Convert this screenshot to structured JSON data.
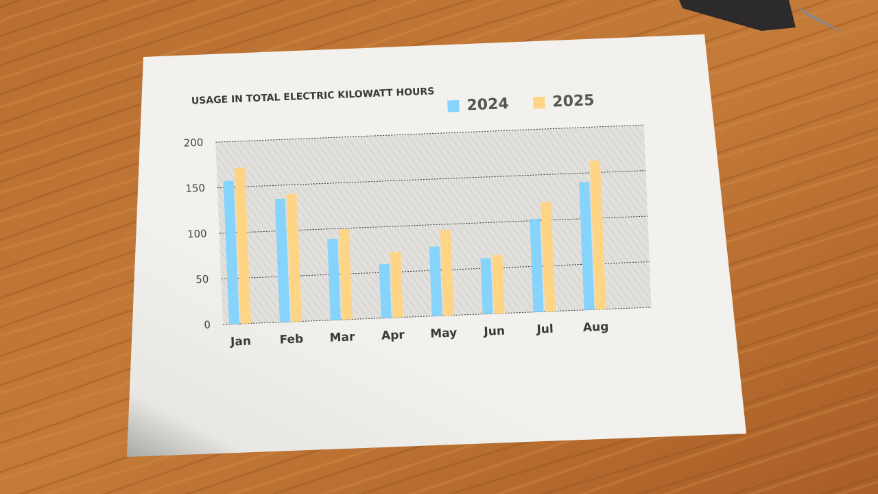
{
  "chart_data": {
    "type": "bar",
    "title": "USAGE IN TOTAL ELECTRIC KILOWATT HOURS",
    "categories": [
      "Jan",
      "Feb",
      "Mar",
      "Apr",
      "May",
      "Jun",
      "Jul",
      "Aug"
    ],
    "series": [
      {
        "name": "2024",
        "color": "#86d3fb",
        "values": [
          157,
          135,
          89,
          59,
          76,
          61,
          102,
          140
        ]
      },
      {
        "name": "2025",
        "color": "#fed585",
        "values": [
          171,
          140,
          99,
          72,
          94,
          64,
          120,
          163
        ]
      }
    ],
    "ylim": [
      0,
      200
    ],
    "yticks": [
      0,
      50,
      100,
      150,
      200
    ],
    "grid": true
  }
}
